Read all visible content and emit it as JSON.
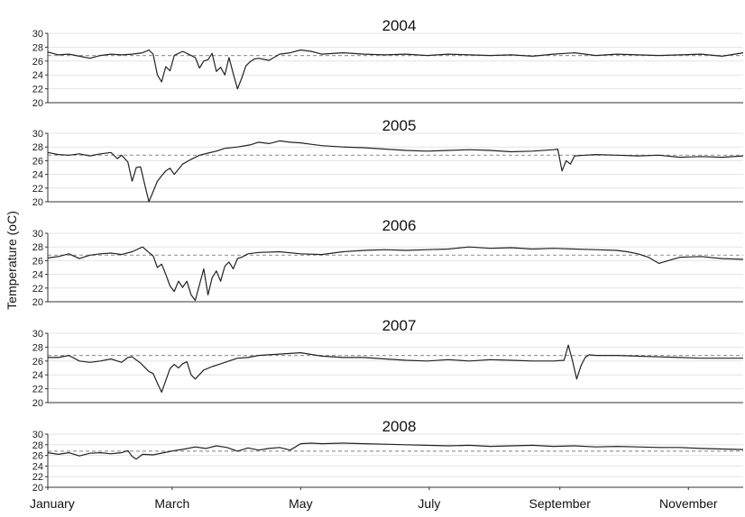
{
  "chart_data": {
    "type": "line",
    "ylabel": "Temperature (oC)",
    "xlim": [
      0,
      330
    ],
    "ylim": [
      20,
      30
    ],
    "yticks": [
      "20",
      "22",
      "24",
      "26",
      "28",
      "30"
    ],
    "xticks": [
      {
        "label": "January",
        "day": 0
      },
      {
        "label": "March",
        "day": 59
      },
      {
        "label": "May",
        "day": 120
      },
      {
        "label": "July",
        "day": 181
      },
      {
        "label": "September",
        "day": 243
      },
      {
        "label": "November",
        "day": 304
      }
    ],
    "reference_line": 26.8,
    "grid": "horizontal",
    "panels": [
      {
        "title": "2004",
        "series": {
          "x": [
            0,
            5,
            10,
            15,
            20,
            25,
            30,
            35,
            40,
            45,
            48,
            50,
            52,
            54,
            56,
            58,
            60,
            64,
            68,
            70,
            72,
            74,
            76,
            78,
            80,
            82,
            84,
            86,
            88,
            90,
            92,
            94,
            96,
            98,
            100,
            105,
            110,
            115,
            120,
            125,
            130,
            140,
            150,
            160,
            170,
            180,
            190,
            200,
            210,
            220,
            230,
            240,
            250,
            260,
            270,
            280,
            290,
            300,
            310,
            320,
            330
          ],
          "y": [
            27.3,
            26.9,
            27.0,
            26.7,
            26.4,
            26.8,
            27.0,
            26.9,
            27.0,
            27.2,
            27.6,
            27.0,
            24.0,
            23.0,
            25.2,
            24.6,
            26.8,
            27.4,
            26.8,
            26.5,
            25.0,
            26.0,
            26.2,
            27.1,
            24.5,
            25.1,
            24.0,
            26.5,
            24.2,
            22.0,
            23.5,
            25.3,
            25.9,
            26.3,
            26.4,
            26.1,
            27.0,
            27.2,
            27.6,
            27.4,
            27.0,
            27.2,
            27.0,
            26.9,
            27.0,
            26.8,
            27.0,
            26.9,
            26.8,
            26.9,
            26.7,
            27.0,
            27.2,
            26.8,
            27.0,
            26.9,
            26.8,
            26.9,
            27.0,
            26.7,
            27.2
          ]
        }
      },
      {
        "title": "2005",
        "series": {
          "x": [
            0,
            5,
            10,
            15,
            20,
            25,
            30,
            33,
            35,
            38,
            40,
            42,
            44,
            46,
            48,
            50,
            52,
            54,
            56,
            58,
            60,
            64,
            68,
            72,
            76,
            80,
            84,
            90,
            96,
            100,
            105,
            110,
            115,
            120,
            125,
            130,
            140,
            150,
            160,
            170,
            180,
            190,
            200,
            210,
            220,
            230,
            240,
            242,
            244,
            246,
            248,
            250,
            255,
            260,
            270,
            280,
            290,
            300,
            310,
            320,
            330
          ],
          "y": [
            27.2,
            26.9,
            26.8,
            27.0,
            26.7,
            27.0,
            27.2,
            26.3,
            26.8,
            25.8,
            23.0,
            25.0,
            25.1,
            22.5,
            20.0,
            21.5,
            23.0,
            23.8,
            24.5,
            24.9,
            24.0,
            25.5,
            26.2,
            26.8,
            27.1,
            27.4,
            27.8,
            28.0,
            28.3,
            28.7,
            28.5,
            28.9,
            28.7,
            28.6,
            28.4,
            28.2,
            28.0,
            27.9,
            27.7,
            27.5,
            27.4,
            27.5,
            27.6,
            27.5,
            27.3,
            27.4,
            27.6,
            27.7,
            24.5,
            26.0,
            25.5,
            26.7,
            26.8,
            26.9,
            26.8,
            26.7,
            26.8,
            26.5,
            26.6,
            26.5,
            26.7
          ]
        }
      },
      {
        "title": "2006",
        "series": {
          "x": [
            0,
            5,
            10,
            15,
            20,
            25,
            30,
            35,
            40,
            45,
            48,
            50,
            52,
            54,
            56,
            58,
            60,
            62,
            64,
            66,
            68,
            70,
            72,
            74,
            76,
            78,
            80,
            82,
            84,
            86,
            88,
            90,
            92,
            95,
            100,
            110,
            120,
            130,
            140,
            150,
            160,
            170,
            180,
            190,
            200,
            210,
            220,
            230,
            240,
            250,
            260,
            270,
            275,
            280,
            285,
            290,
            300,
            310,
            320,
            330
          ],
          "y": [
            26.4,
            26.6,
            27.0,
            26.3,
            26.8,
            27.0,
            27.1,
            26.9,
            27.3,
            28.0,
            27.2,
            26.7,
            25.0,
            25.5,
            24.0,
            22.3,
            21.5,
            23.0,
            22.1,
            23.0,
            21.0,
            20.2,
            22.5,
            24.8,
            21.0,
            23.5,
            24.5,
            23.0,
            25.2,
            25.8,
            24.8,
            26.3,
            26.5,
            27.0,
            27.2,
            27.3,
            27.0,
            26.9,
            27.3,
            27.5,
            27.6,
            27.5,
            27.6,
            27.7,
            28.0,
            27.8,
            27.9,
            27.7,
            27.8,
            27.7,
            27.6,
            27.5,
            27.3,
            27.0,
            26.5,
            25.6,
            26.5,
            26.6,
            26.3,
            26.2
          ]
        }
      },
      {
        "title": "2007",
        "series": {
          "x": [
            0,
            5,
            10,
            15,
            20,
            25,
            30,
            35,
            38,
            40,
            44,
            48,
            50,
            52,
            54,
            56,
            58,
            60,
            62,
            64,
            66,
            68,
            70,
            74,
            78,
            82,
            86,
            90,
            95,
            100,
            110,
            120,
            130,
            140,
            150,
            160,
            170,
            180,
            190,
            200,
            210,
            220,
            230,
            240,
            245,
            247,
            249,
            251,
            253,
            255,
            257,
            260,
            270,
            280,
            290,
            300,
            310,
            320,
            330
          ],
          "y": [
            26.5,
            26.5,
            26.8,
            26.0,
            25.8,
            26.0,
            26.3,
            25.8,
            26.5,
            26.6,
            25.7,
            24.5,
            24.2,
            22.8,
            21.5,
            23.2,
            24.9,
            25.5,
            25.0,
            25.6,
            25.9,
            24.0,
            23.4,
            24.7,
            25.2,
            25.6,
            26.0,
            26.4,
            26.5,
            26.8,
            27.0,
            27.2,
            26.7,
            26.5,
            26.5,
            26.3,
            26.1,
            26.0,
            26.2,
            26.0,
            26.2,
            26.1,
            26.0,
            26.0,
            26.1,
            28.3,
            26.0,
            23.4,
            25.3,
            26.5,
            26.9,
            26.8,
            26.8,
            26.7,
            26.6,
            26.5,
            26.4,
            26.4,
            26.4
          ]
        }
      },
      {
        "title": "2008",
        "series": {
          "x": [
            0,
            5,
            10,
            15,
            20,
            25,
            30,
            35,
            38,
            40,
            42,
            45,
            50,
            55,
            60,
            65,
            70,
            75,
            80,
            85,
            90,
            95,
            100,
            105,
            110,
            115,
            120,
            125,
            130,
            140,
            150,
            160,
            170,
            180,
            190,
            200,
            210,
            220,
            230,
            240,
            250,
            260,
            270,
            280,
            290,
            300,
            310,
            320,
            330
          ],
          "y": [
            26.5,
            26.2,
            26.5,
            25.9,
            26.4,
            26.5,
            26.3,
            26.5,
            26.9,
            25.8,
            25.3,
            26.2,
            26.1,
            26.5,
            26.9,
            27.2,
            27.6,
            27.3,
            27.8,
            27.5,
            26.8,
            27.4,
            27.0,
            27.3,
            27.5,
            27.0,
            28.2,
            28.3,
            28.2,
            28.3,
            28.2,
            28.1,
            28.0,
            27.9,
            27.8,
            27.9,
            27.7,
            27.8,
            27.9,
            27.7,
            27.8,
            27.6,
            27.7,
            27.6,
            27.5,
            27.5,
            27.3,
            27.2,
            27.1
          ]
        }
      }
    ]
  }
}
